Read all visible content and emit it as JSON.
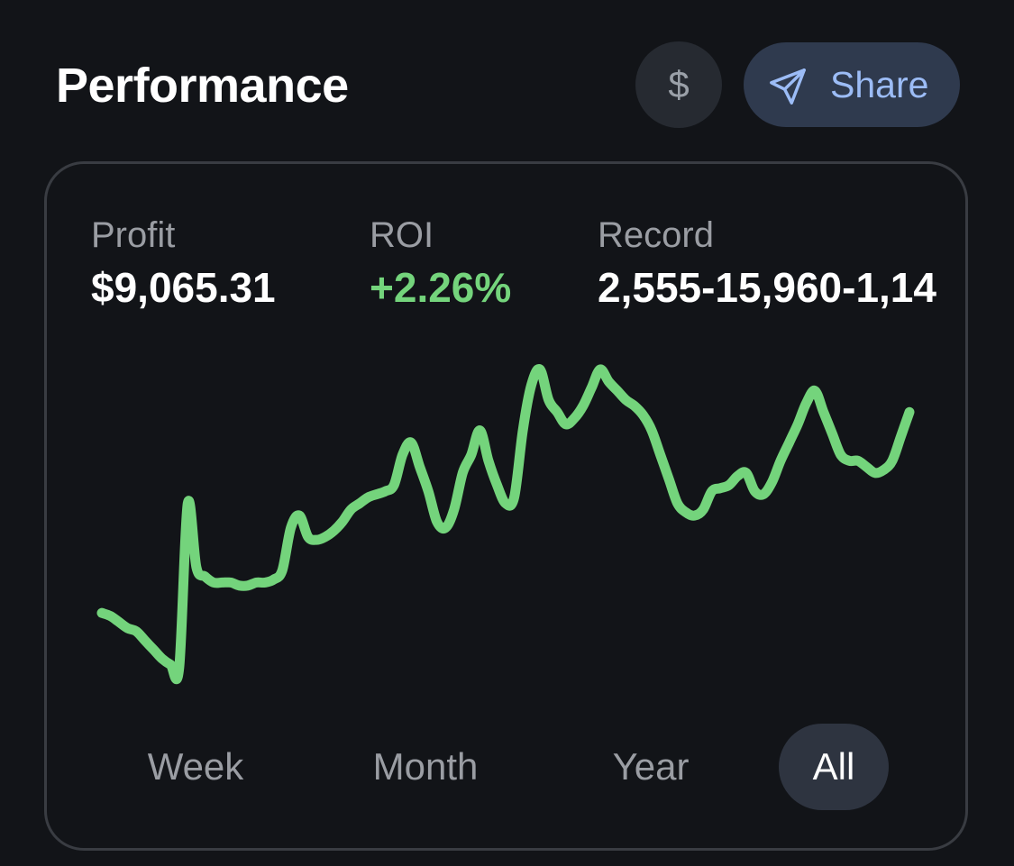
{
  "header": {
    "title": "Performance",
    "currency_label": "$",
    "share_label": "Share",
    "share_icon": "send-icon"
  },
  "stats": {
    "profit": {
      "label": "Profit",
      "value": "$9,065.31"
    },
    "roi": {
      "label": "ROI",
      "value": "+2.26%"
    },
    "record": {
      "label": "Record",
      "value": "2,555-15,960-1,14"
    }
  },
  "tabs": {
    "week": "Week",
    "month": "Month",
    "year": "Year",
    "all": "All",
    "selected": "All"
  },
  "colors": {
    "line": "#74d47c",
    "accent": "#9cbcf6"
  },
  "chart_data": {
    "type": "line",
    "series": [
      {
        "values": [
          20,
          19,
          17,
          15,
          14,
          11,
          8,
          5,
          3,
          2,
          56,
          35,
          32,
          30,
          30,
          30,
          29,
          29,
          30,
          30,
          31,
          34,
          48,
          52,
          45,
          44,
          45,
          47,
          50,
          54,
          56,
          58,
          59,
          60,
          62,
          72,
          76,
          68,
          60,
          50,
          48,
          54,
          66,
          72,
          80,
          70,
          62,
          56,
          58,
          80,
          95,
          100,
          90,
          86,
          82,
          84,
          88,
          94,
          100,
          96,
          93,
          90,
          88,
          85,
          80,
          72,
          64,
          56,
          53,
          52,
          54,
          60,
          61,
          62,
          65,
          66,
          60,
          59,
          63,
          70,
          76,
          82,
          89,
          93,
          86,
          79,
          72,
          70,
          70,
          68,
          66,
          67,
          70,
          78,
          86
        ]
      }
    ]
  }
}
